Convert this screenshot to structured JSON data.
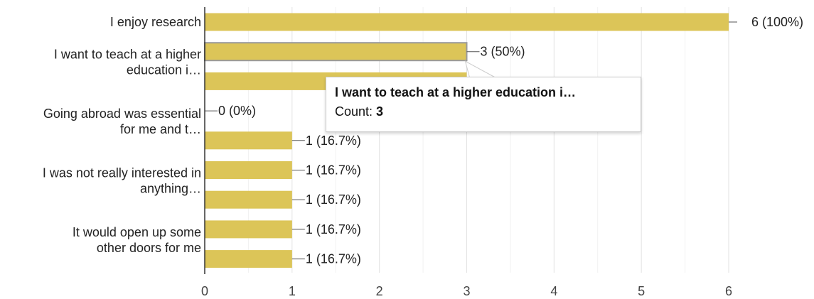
{
  "chart_data": {
    "type": "bar",
    "orientation": "horizontal",
    "rows": [
      {
        "label_lines": [
          "I enjoy research"
        ],
        "value": 6,
        "data_label": "6 (100%)"
      },
      {
        "label_lines": [
          "I want to teach at a higher",
          "education i…"
        ],
        "value": 3,
        "data_label": "3 (50%)"
      },
      {
        "label_lines": [],
        "value": 3,
        "data_label": ""
      },
      {
        "label_lines": [
          "Going abroad was essential",
          "for me and t…"
        ],
        "value": 0,
        "data_label": "0 (0%)"
      },
      {
        "label_lines": [],
        "value": 1,
        "data_label": "1 (16.7%)"
      },
      {
        "label_lines": [
          "I was not really interested in",
          "anything…"
        ],
        "value": 1,
        "data_label": "1 (16.7%)"
      },
      {
        "label_lines": [],
        "value": 1,
        "data_label": "1 (16.7%)"
      },
      {
        "label_lines": [
          "It would open up some",
          "other doors for me"
        ],
        "value": 1,
        "data_label": "1 (16.7%)"
      },
      {
        "label_lines": [],
        "value": 1,
        "data_label": "1 (16.7%)"
      }
    ],
    "x_ticks": [
      "0",
      "1",
      "2",
      "3",
      "4",
      "5",
      "6"
    ],
    "xlim": [
      0,
      6
    ],
    "grid": true,
    "bar_color": "#dcc558",
    "highlighted_row": 1
  },
  "tooltip": {
    "title": "I want to teach at a higher education i…",
    "count_label": "Count: ",
    "count_value": "3"
  }
}
